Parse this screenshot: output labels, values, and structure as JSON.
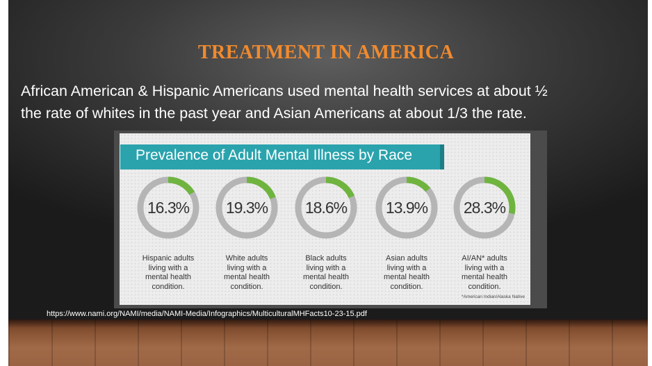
{
  "slide": {
    "title": "TREATMENT IN AMERICA",
    "body_line1": "African American & Hispanic Americans used mental health services at about ½",
    "body_line2": "the rate of whites in the past year and Asian Americans at about 1/3 the rate.",
    "source_url": "https://www.nami.org/NAMI/media/NAMI-Media/Infographics/MulticulturalMHFacts10-23-15.pdf"
  },
  "infographic": {
    "title": "Prevalence of Adult Mental Illness by Race",
    "footnote": "*American Indian/Alaska Native",
    "colors": {
      "track": "#b5b5b5",
      "fill": "#6fb43f",
      "header": "#2aa3ad",
      "title_orange": "#f08a2e"
    },
    "items": [
      {
        "value": 16.3,
        "label": "16.3%",
        "caption": [
          "Hispanic adults",
          "living with a",
          "mental health",
          "condition."
        ]
      },
      {
        "value": 19.3,
        "label": "19.3%",
        "caption": [
          "White adults",
          "living with a",
          "mental health",
          "condition."
        ]
      },
      {
        "value": 18.6,
        "label": "18.6%",
        "caption": [
          "Black adults",
          "living with a",
          "mental health",
          "condition."
        ]
      },
      {
        "value": 13.9,
        "label": "13.9%",
        "caption": [
          "Asian adults",
          "living with a",
          "mental health",
          "condition."
        ]
      },
      {
        "value": 28.3,
        "label": "28.3%",
        "caption": [
          "AI/AN* adults",
          "living with a",
          "mental health",
          "condition."
        ]
      }
    ]
  }
}
